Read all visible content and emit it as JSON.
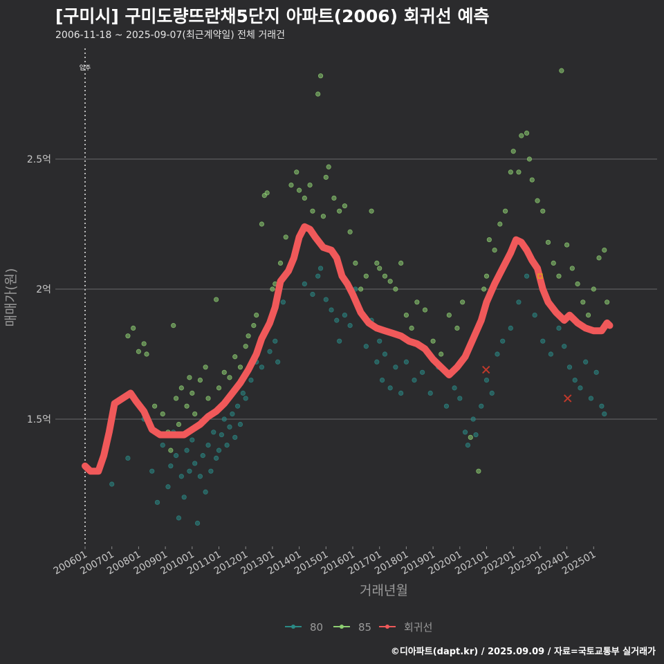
{
  "header": {
    "title": "[구미시] 구미도량뜨란채5단지 아파트(2006) 회귀선 예측",
    "subtitle": "2006-11-18 ~ 2025-09-07(최근계약일) 전체 거래건"
  },
  "footer": {
    "credit": "©디아파트(dapt.kr) / 2025.09.09 / 자료=국토교통부 실거래가"
  },
  "colors": {
    "background": "#2b2b2d",
    "grid": "#6a6a6a",
    "series_80": "#2a8a86",
    "series_85": "#8ecf72",
    "regression": "#f0595a",
    "marker_x": "#c0392b"
  },
  "chart_data": {
    "type": "scatter",
    "title": "[구미시] 구미도량뜨란채5단지 아파트(2006) 회귀선 예측",
    "subtitle": "2006-11-18 ~ 2025-09-07(최근계약일) 전체 거래건",
    "xlabel": "거래년월",
    "ylabel": "매매가(원)",
    "x_ticks": [
      "200601",
      "200701",
      "200801",
      "200901",
      "201001",
      "201101",
      "201201",
      "201301",
      "201401",
      "201501",
      "201601",
      "201701",
      "201801",
      "201901",
      "202001",
      "202101",
      "202201",
      "202301",
      "202401",
      "202501"
    ],
    "y_ticks": [
      {
        "value": 1.5,
        "label": "1.5억"
      },
      {
        "value": 2.0,
        "label": "2억"
      },
      {
        "value": 2.5,
        "label": "2.5억"
      }
    ],
    "xlim": [
      2006.0,
      2025.7
    ],
    "ylim": [
      1.0,
      2.95
    ],
    "grid": true,
    "legend_position": "bottom",
    "annotation": {
      "label": "입주",
      "x": 2006.0
    },
    "series": [
      {
        "name": "80",
        "color": "#2a8a86",
        "points": [
          [
            2007.0,
            1.25
          ],
          [
            2007.6,
            1.35
          ],
          [
            2008.2,
            1.5
          ],
          [
            2008.5,
            1.3
          ],
          [
            2008.7,
            1.18
          ],
          [
            2008.9,
            1.4
          ],
          [
            2009.1,
            1.24
          ],
          [
            2009.2,
            1.32
          ],
          [
            2009.3,
            1.45
          ],
          [
            2009.4,
            1.36
          ],
          [
            2009.5,
            1.12
          ],
          [
            2009.6,
            1.28
          ],
          [
            2009.7,
            1.2
          ],
          [
            2009.8,
            1.38
          ],
          [
            2009.9,
            1.3
          ],
          [
            2010.0,
            1.42
          ],
          [
            2010.1,
            1.33
          ],
          [
            2010.2,
            1.1
          ],
          [
            2010.3,
            1.28
          ],
          [
            2010.4,
            1.36
          ],
          [
            2010.5,
            1.22
          ],
          [
            2010.6,
            1.4
          ],
          [
            2010.7,
            1.3
          ],
          [
            2010.8,
            1.45
          ],
          [
            2010.9,
            1.35
          ],
          [
            2011.0,
            1.38
          ],
          [
            2011.1,
            1.44
          ],
          [
            2011.2,
            1.5
          ],
          [
            2011.3,
            1.4
          ],
          [
            2011.4,
            1.47
          ],
          [
            2011.5,
            1.52
          ],
          [
            2011.6,
            1.43
          ],
          [
            2011.7,
            1.55
          ],
          [
            2011.8,
            1.48
          ],
          [
            2011.9,
            1.6
          ],
          [
            2012.0,
            1.58
          ],
          [
            2012.2,
            1.65
          ],
          [
            2012.4,
            1.72
          ],
          [
            2012.6,
            1.7
          ],
          [
            2012.9,
            1.76
          ],
          [
            2013.1,
            1.8
          ],
          [
            2013.2,
            1.72
          ],
          [
            2013.4,
            1.95
          ],
          [
            2014.2,
            2.02
          ],
          [
            2014.5,
            1.98
          ],
          [
            2014.7,
            2.05
          ],
          [
            2014.8,
            2.08
          ],
          [
            2015.0,
            1.96
          ],
          [
            2015.2,
            1.92
          ],
          [
            2015.4,
            1.88
          ],
          [
            2015.5,
            1.8
          ],
          [
            2015.7,
            1.9
          ],
          [
            2015.9,
            1.86
          ],
          [
            2016.1,
            2.0
          ],
          [
            2016.3,
            1.92
          ],
          [
            2016.5,
            1.78
          ],
          [
            2016.7,
            1.88
          ],
          [
            2016.9,
            1.72
          ],
          [
            2017.0,
            1.8
          ],
          [
            2017.1,
            1.65
          ],
          [
            2017.2,
            1.75
          ],
          [
            2017.4,
            1.62
          ],
          [
            2017.6,
            1.7
          ],
          [
            2017.8,
            1.6
          ],
          [
            2018.0,
            1.72
          ],
          [
            2018.3,
            1.65
          ],
          [
            2018.6,
            1.68
          ],
          [
            2018.9,
            1.6
          ],
          [
            2019.2,
            1.7
          ],
          [
            2019.5,
            1.55
          ],
          [
            2019.8,
            1.62
          ],
          [
            2020.0,
            1.58
          ],
          [
            2020.2,
            1.45
          ],
          [
            2020.3,
            1.4
          ],
          [
            2020.5,
            1.5
          ],
          [
            2020.6,
            1.44
          ],
          [
            2020.8,
            1.55
          ],
          [
            2021.0,
            1.65
          ],
          [
            2021.2,
            1.6
          ],
          [
            2021.4,
            1.75
          ],
          [
            2021.6,
            1.8
          ],
          [
            2021.9,
            1.85
          ],
          [
            2022.2,
            1.95
          ],
          [
            2022.5,
            2.05
          ],
          [
            2022.8,
            1.9
          ],
          [
            2023.1,
            1.8
          ],
          [
            2023.4,
            1.75
          ],
          [
            2023.7,
            1.85
          ],
          [
            2023.9,
            1.78
          ],
          [
            2024.1,
            1.7
          ],
          [
            2024.3,
            1.65
          ],
          [
            2024.5,
            1.62
          ],
          [
            2024.7,
            1.72
          ],
          [
            2024.9,
            1.58
          ],
          [
            2025.1,
            1.68
          ],
          [
            2025.3,
            1.55
          ],
          [
            2025.4,
            1.52
          ]
        ]
      },
      {
        "name": "85",
        "color": "#8ecf72",
        "points": [
          [
            2007.6,
            1.82
          ],
          [
            2007.8,
            1.85
          ],
          [
            2008.0,
            1.76
          ],
          [
            2008.2,
            1.79
          ],
          [
            2008.3,
            1.75
          ],
          [
            2008.6,
            1.55
          ],
          [
            2008.9,
            1.52
          ],
          [
            2009.1,
            1.45
          ],
          [
            2009.2,
            1.38
          ],
          [
            2009.3,
            1.86
          ],
          [
            2009.4,
            1.58
          ],
          [
            2009.5,
            1.48
          ],
          [
            2009.6,
            1.62
          ],
          [
            2009.8,
            1.55
          ],
          [
            2009.9,
            1.66
          ],
          [
            2010.0,
            1.6
          ],
          [
            2010.1,
            1.52
          ],
          [
            2010.3,
            1.65
          ],
          [
            2010.5,
            1.7
          ],
          [
            2010.6,
            1.58
          ],
          [
            2010.9,
            1.96
          ],
          [
            2011.0,
            1.62
          ],
          [
            2011.2,
            1.68
          ],
          [
            2011.4,
            1.66
          ],
          [
            2011.6,
            1.74
          ],
          [
            2011.8,
            1.7
          ],
          [
            2012.0,
            1.78
          ],
          [
            2012.1,
            1.82
          ],
          [
            2012.3,
            1.86
          ],
          [
            2012.4,
            1.9
          ],
          [
            2012.6,
            2.25
          ],
          [
            2012.7,
            2.36
          ],
          [
            2012.8,
            2.37
          ],
          [
            2013.0,
            2.0
          ],
          [
            2013.1,
            2.02
          ],
          [
            2013.3,
            2.1
          ],
          [
            2013.5,
            2.2
          ],
          [
            2013.7,
            2.4
          ],
          [
            2013.9,
            2.45
          ],
          [
            2014.0,
            2.38
          ],
          [
            2014.2,
            2.35
          ],
          [
            2014.4,
            2.4
          ],
          [
            2014.5,
            2.3
          ],
          [
            2014.7,
            2.75
          ],
          [
            2014.8,
            2.82
          ],
          [
            2014.9,
            2.28
          ],
          [
            2015.0,
            2.43
          ],
          [
            2015.1,
            2.47
          ],
          [
            2015.3,
            2.35
          ],
          [
            2015.5,
            2.3
          ],
          [
            2015.7,
            2.32
          ],
          [
            2015.9,
            2.22
          ],
          [
            2016.1,
            2.1
          ],
          [
            2016.3,
            2.0
          ],
          [
            2016.5,
            2.05
          ],
          [
            2016.7,
            2.3
          ],
          [
            2016.9,
            2.1
          ],
          [
            2017.0,
            2.08
          ],
          [
            2017.2,
            2.05
          ],
          [
            2017.4,
            2.03
          ],
          [
            2017.6,
            2.0
          ],
          [
            2017.8,
            2.1
          ],
          [
            2018.0,
            1.9
          ],
          [
            2018.2,
            1.85
          ],
          [
            2018.4,
            1.95
          ],
          [
            2018.7,
            1.92
          ],
          [
            2019.0,
            1.8
          ],
          [
            2019.3,
            1.75
          ],
          [
            2019.6,
            1.9
          ],
          [
            2019.9,
            1.85
          ],
          [
            2020.1,
            1.95
          ],
          [
            2020.4,
            1.43
          ],
          [
            2020.7,
            1.3
          ],
          [
            2020.9,
            2.0
          ],
          [
            2021.0,
            2.05
          ],
          [
            2021.1,
            2.19
          ],
          [
            2021.3,
            2.15
          ],
          [
            2021.5,
            2.25
          ],
          [
            2021.7,
            2.3
          ],
          [
            2021.9,
            2.45
          ],
          [
            2022.0,
            2.53
          ],
          [
            2022.2,
            2.45
          ],
          [
            2022.3,
            2.59
          ],
          [
            2022.5,
            2.6
          ],
          [
            2022.6,
            2.5
          ],
          [
            2022.7,
            2.42
          ],
          [
            2022.9,
            2.34
          ],
          [
            2023.1,
            2.3
          ],
          [
            2023.3,
            2.18
          ],
          [
            2023.5,
            2.1
          ],
          [
            2023.7,
            2.05
          ],
          [
            2023.8,
            2.84
          ],
          [
            2024.0,
            2.17
          ],
          [
            2024.2,
            2.08
          ],
          [
            2024.4,
            2.02
          ],
          [
            2024.6,
            1.95
          ],
          [
            2024.8,
            1.9
          ],
          [
            2025.0,
            2.0
          ],
          [
            2025.2,
            2.12
          ],
          [
            2025.4,
            2.15
          ],
          [
            2025.5,
            1.95
          ]
        ]
      },
      {
        "name": "회귀선",
        "color": "#f0595a",
        "points": [
          [
            2006.0,
            1.32
          ],
          [
            2006.2,
            1.3
          ],
          [
            2006.5,
            1.3
          ],
          [
            2006.7,
            1.36
          ],
          [
            2006.9,
            1.45
          ],
          [
            2007.1,
            1.56
          ],
          [
            2007.4,
            1.58
          ],
          [
            2007.7,
            1.6
          ],
          [
            2007.9,
            1.57
          ],
          [
            2008.2,
            1.53
          ],
          [
            2008.5,
            1.46
          ],
          [
            2008.8,
            1.44
          ],
          [
            2009.1,
            1.44
          ],
          [
            2009.4,
            1.44
          ],
          [
            2009.7,
            1.44
          ],
          [
            2010.0,
            1.46
          ],
          [
            2010.3,
            1.48
          ],
          [
            2010.6,
            1.51
          ],
          [
            2010.9,
            1.53
          ],
          [
            2011.2,
            1.56
          ],
          [
            2011.5,
            1.6
          ],
          [
            2011.8,
            1.64
          ],
          [
            2012.1,
            1.69
          ],
          [
            2012.4,
            1.75
          ],
          [
            2012.6,
            1.81
          ],
          [
            2012.9,
            1.87
          ],
          [
            2013.1,
            1.93
          ],
          [
            2013.3,
            2.03
          ],
          [
            2013.6,
            2.07
          ],
          [
            2013.8,
            2.12
          ],
          [
            2014.0,
            2.2
          ],
          [
            2014.2,
            2.24
          ],
          [
            2014.4,
            2.23
          ],
          [
            2014.6,
            2.2
          ],
          [
            2014.9,
            2.16
          ],
          [
            2015.2,
            2.15
          ],
          [
            2015.4,
            2.12
          ],
          [
            2015.6,
            2.05
          ],
          [
            2015.8,
            2.02
          ],
          [
            2016.0,
            1.98
          ],
          [
            2016.3,
            1.91
          ],
          [
            2016.6,
            1.87
          ],
          [
            2016.9,
            1.85
          ],
          [
            2017.2,
            1.84
          ],
          [
            2017.5,
            1.83
          ],
          [
            2017.8,
            1.82
          ],
          [
            2018.1,
            1.8
          ],
          [
            2018.4,
            1.79
          ],
          [
            2018.7,
            1.77
          ],
          [
            2019.0,
            1.73
          ],
          [
            2019.3,
            1.7
          ],
          [
            2019.6,
            1.67
          ],
          [
            2019.9,
            1.7
          ],
          [
            2020.2,
            1.74
          ],
          [
            2020.5,
            1.81
          ],
          [
            2020.8,
            1.88
          ],
          [
            2021.0,
            1.95
          ],
          [
            2021.3,
            2.02
          ],
          [
            2021.6,
            2.08
          ],
          [
            2021.9,
            2.14
          ],
          [
            2022.1,
            2.19
          ],
          [
            2022.3,
            2.18
          ],
          [
            2022.5,
            2.15
          ],
          [
            2022.7,
            2.11
          ],
          [
            2022.9,
            2.08
          ],
          [
            2023.1,
            2.0
          ],
          [
            2023.3,
            1.95
          ],
          [
            2023.6,
            1.91
          ],
          [
            2023.9,
            1.88
          ],
          [
            2024.1,
            1.9
          ],
          [
            2024.4,
            1.87
          ],
          [
            2024.7,
            1.85
          ],
          [
            2025.0,
            1.84
          ],
          [
            2025.3,
            1.84
          ],
          [
            2025.5,
            1.87
          ],
          [
            2025.6,
            1.86
          ]
        ]
      }
    ],
    "markers": [
      {
        "x": 2020.98,
        "y": 1.69
      },
      {
        "x": 2024.03,
        "y": 1.58
      },
      {
        "x": 2023.0,
        "y": 2.05
      }
    ]
  }
}
